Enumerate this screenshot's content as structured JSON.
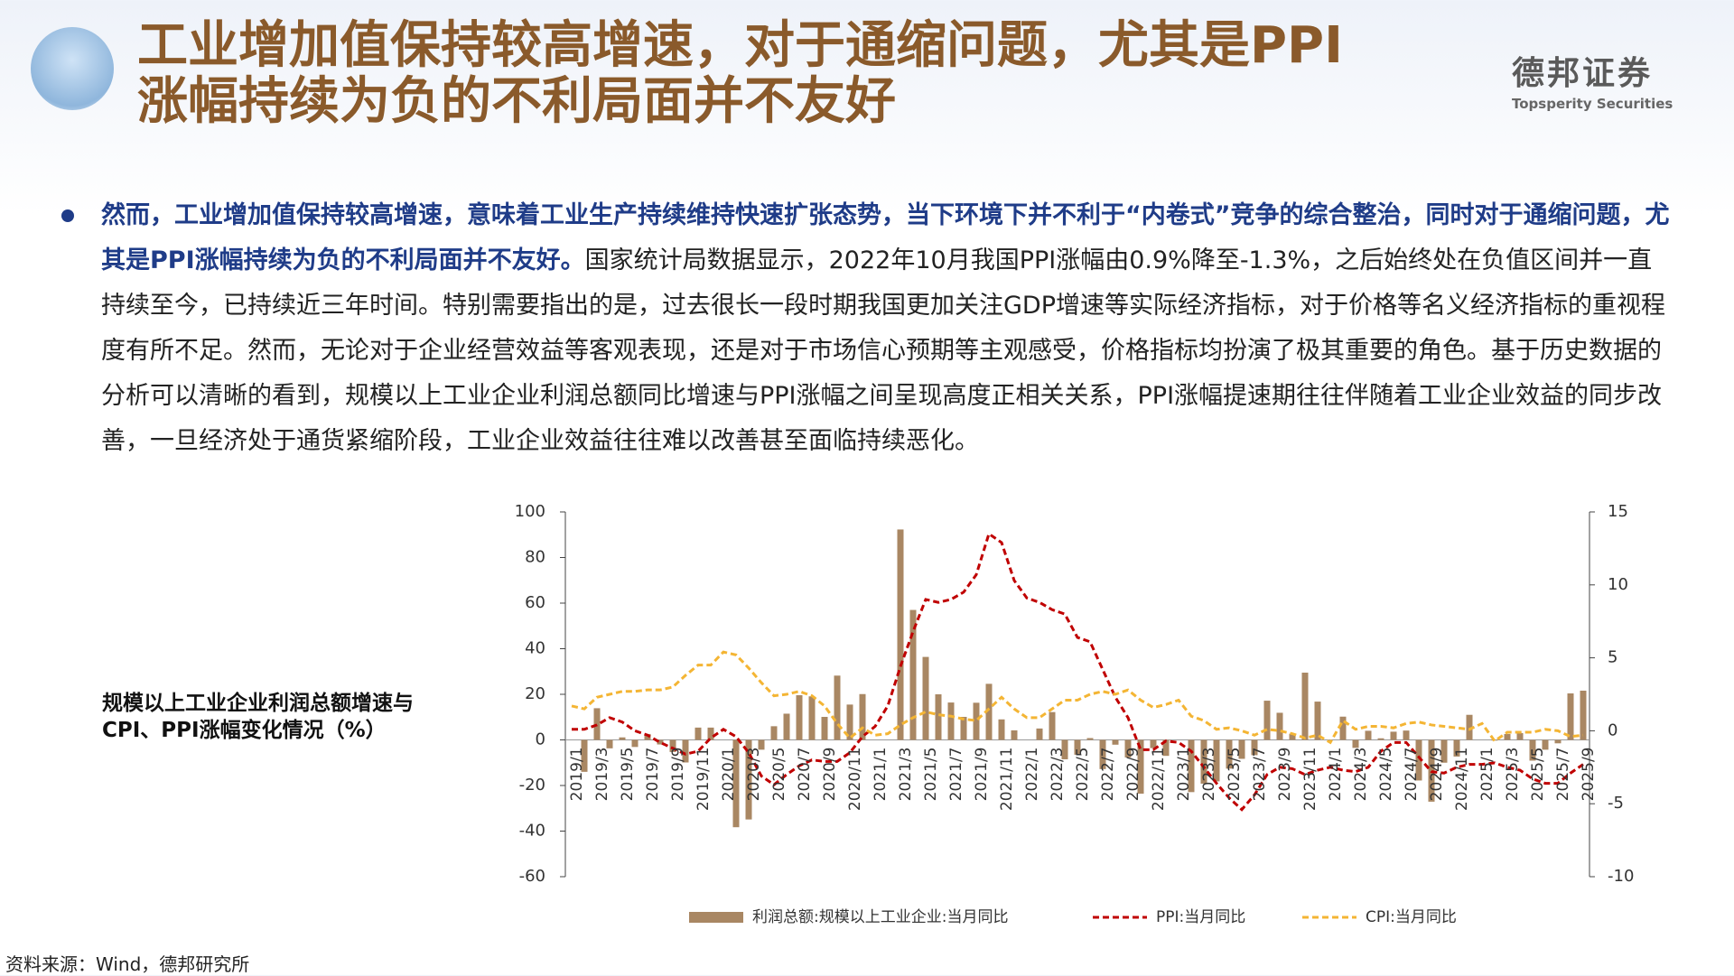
{
  "header": {
    "title_lines": [
      "工业增加值保持较高增速，对于通缩问题，尤其是PPI",
      "涨幅持续为负的不利局面并不友好"
    ]
  },
  "logo": {
    "name": "德邦证券",
    "english": "Topsperity Securities"
  },
  "body": {
    "bold": "然而，工业增加值保持较高增速，意味着工业生产持续维持快速扩张态势，当下环境下并不利于“内卷式”竞争的综合整治，同时对于通缩问题，尤其是PPI涨幅持续为负的不利局面并不友好。",
    "text": "国家统计局数据显示，2022年10月我国PPI涨幅由0.9%降至-1.3%，之后始终处在负值区间并一直持续至今，已持续近三年时间。特别需要指出的是，过去很长一段时期我国更加关注GDP增速等实际经济指标，对于价格等名义经济指标的重视程度有所不足。然而，无论对于企业经营效益等客观表现，还是对于市场信心预期等主观感受，价格指标均扮演了极其重要的角色。基于历史数据的分析可以清晰的看到，规模以上工业企业利润总额同比增速与PPI涨幅之间呈现高度正相关关系，PPI涨幅提速期往往伴随着工业企业效益的同步改善，一旦经济处于通货紧缩阶段，工业企业效益往往难以改善甚至面临持续恶化。"
  },
  "chart_data": {
    "type": "bar",
    "title": "规模以上工业企业利润总额增速与CPI、PPI涨幅变化情况（%）",
    "source": "资料来源：Wind，德邦研究所",
    "categories": [
      "2019/1",
      null,
      "2019/3",
      null,
      "2019/5",
      null,
      "2019/7",
      null,
      "2019/9",
      null,
      "2019/11",
      null,
      "2020/1",
      null,
      "2020/3",
      null,
      "2020/5",
      null,
      "2020/7",
      null,
      "2020/9",
      null,
      "2020/11",
      null,
      "2021/1",
      null,
      "2021/3",
      null,
      "2021/5",
      null,
      "2021/7",
      null,
      "2021/9",
      null,
      "2021/11",
      null,
      "2022/1",
      null,
      "2022/3",
      null,
      "2022/5",
      null,
      "2022/7",
      null,
      "2022/9",
      null,
      "2022/11",
      null,
      "2023/1",
      null,
      "2023/3",
      null,
      "2023/5",
      null,
      "2023/7",
      null,
      "2023/9",
      null,
      "2023/11",
      null,
      "2024/1",
      null,
      "2024/3",
      null,
      "2024/5",
      null,
      "2024/7",
      null,
      "2024/9",
      null,
      "2024/11",
      null,
      "2025/1",
      null,
      "2025/3",
      null,
      "2025/5",
      null,
      "2025/7",
      null,
      "2025/9"
    ],
    "series": [
      {
        "name": "利润总额:规模以上工业企业:当月同比",
        "type": "bar",
        "color": "#a98763",
        "values": [
          null,
          -14.0,
          13.9,
          -3.7,
          1.1,
          -3.1,
          2.6,
          -2.0,
          -5.3,
          -9.9,
          5.4,
          5.4,
          null,
          -38.3,
          -34.9,
          -4.3,
          6.0,
          11.5,
          19.6,
          19.1,
          10.1,
          28.2,
          15.5,
          20.1,
          null,
          null,
          92.3,
          57.0,
          36.4,
          20.0,
          16.4,
          10.1,
          16.3,
          24.6,
          9.0,
          4.2,
          null,
          5.0,
          12.2,
          -8.5,
          -6.5,
          0.8,
          -12.8,
          -2.1,
          -7.7,
          -23.6,
          -3.6,
          -7.0,
          null,
          -22.9,
          -19.2,
          -18.2,
          -12.6,
          -8.3,
          -6.7,
          17.2,
          11.9,
          2.7,
          29.5,
          16.8,
          null,
          10.2,
          -3.5,
          4.0,
          0.7,
          3.6,
          4.1,
          -17.8,
          -27.1,
          -10.0,
          -7.3,
          11.0,
          null,
          -0.3,
          2.6,
          3.0,
          -9.1,
          -4.3,
          -1.5,
          20.4,
          21.6
        ]
      },
      {
        "name": "PPI:当月同比",
        "type": "line",
        "axis": "y2",
        "color": "#c00000",
        "values": [
          0.1,
          0.1,
          0.4,
          0.9,
          0.6,
          0.0,
          -0.3,
          -0.8,
          -1.2,
          -1.6,
          -1.4,
          -0.5,
          0.1,
          -0.4,
          -1.5,
          -3.1,
          -3.7,
          -3.0,
          -2.4,
          -2.0,
          -2.1,
          -2.1,
          -1.5,
          -0.4,
          0.3,
          1.7,
          4.4,
          6.8,
          9.0,
          8.8,
          9.0,
          9.5,
          10.7,
          13.5,
          12.9,
          10.3,
          9.1,
          8.8,
          8.3,
          8.0,
          6.4,
          6.1,
          4.2,
          2.3,
          0.9,
          -1.3,
          -1.3,
          -0.7,
          -0.8,
          -1.4,
          -2.5,
          -3.6,
          -4.6,
          -5.4,
          -4.4,
          -3.0,
          -2.5,
          -2.6,
          -3.0,
          -2.7,
          -2.5,
          -2.7,
          -2.8,
          -2.5,
          -1.4,
          -0.8,
          -0.8,
          -1.8,
          -2.8,
          -2.9,
          -2.5,
          -2.3,
          -2.3,
          -2.2,
          -2.5,
          -2.7,
          -3.3,
          -3.6,
          -3.6,
          -2.9,
          -2.3
        ]
      },
      {
        "name": "CPI:当月同比",
        "type": "line",
        "axis": "y2",
        "color": "#f4b534",
        "values": [
          1.7,
          1.5,
          2.3,
          2.5,
          2.7,
          2.7,
          2.8,
          2.8,
          3.0,
          3.8,
          4.5,
          4.5,
          5.4,
          5.2,
          4.3,
          3.3,
          2.4,
          2.5,
          2.7,
          2.4,
          1.7,
          0.5,
          -0.5,
          0.2,
          -0.3,
          -0.2,
          0.4,
          0.9,
          1.3,
          1.1,
          1.0,
          0.8,
          0.7,
          1.5,
          2.3,
          1.5,
          0.9,
          0.9,
          1.5,
          2.1,
          2.1,
          2.5,
          2.7,
          2.5,
          2.8,
          2.1,
          1.6,
          1.8,
          2.1,
          1.0,
          0.7,
          0.1,
          0.2,
          0.0,
          -0.3,
          0.1,
          0.0,
          -0.2,
          -0.5,
          -0.3,
          -0.8,
          0.7,
          0.1,
          0.3,
          0.3,
          0.2,
          0.5,
          0.6,
          0.4,
          0.3,
          0.2,
          0.1,
          0.5,
          -0.7,
          -0.1,
          -0.1,
          -0.1,
          0.1,
          0.0,
          -0.4,
          -0.3
        ]
      }
    ],
    "ylim": [
      -60,
      100
    ],
    "yticks": [
      -60,
      -40,
      -20,
      0,
      20,
      40,
      60,
      80,
      100
    ],
    "y2lim": [
      -10,
      15
    ],
    "y2ticks": [
      -10,
      -5,
      0,
      5,
      10,
      15
    ],
    "grid": false,
    "legend": "bottom"
  }
}
